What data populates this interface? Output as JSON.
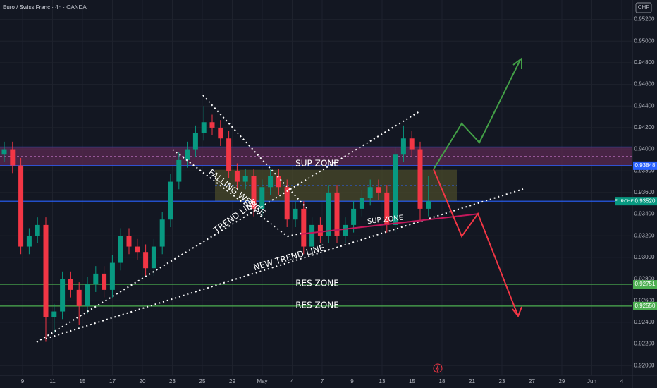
{
  "header": {
    "symbol": "Euro / Swiss Franc · 4h · OANDA",
    "currency": "CHF"
  },
  "chart_data": {
    "type": "candlestick",
    "up_color": "#089981",
    "down_color": "#f23645",
    "open": [
      0.9395,
      0.94,
      0.9385,
      0.931,
      0.932,
      0.933,
      0.9245,
      0.925,
      0.928,
      0.927,
      0.9255,
      0.9275,
      0.9285,
      0.927,
      0.9295,
      0.932,
      0.931,
      0.9305,
      0.929,
      0.931,
      0.9335,
      0.937,
      0.939,
      0.94,
      0.9415,
      0.9425,
      0.942,
      0.941,
      0.938,
      0.937,
      0.9375,
      0.9345,
      0.9365,
      0.9375,
      0.9365,
      0.9335,
      0.9345,
      0.931,
      0.933,
      0.932,
      0.936,
      0.932,
      0.933,
      0.9345,
      0.9355,
      0.9365,
      0.936,
      0.933,
      0.9395,
      0.941,
      0.94,
      0.9345
    ],
    "high": [
      0.9407,
      0.9407,
      0.9392,
      0.9327,
      0.9337,
      0.9337,
      0.9257,
      0.9287,
      0.9287,
      0.9277,
      0.9282,
      0.9292,
      0.9292,
      0.9302,
      0.9327,
      0.9327,
      0.9317,
      0.9312,
      0.9317,
      0.9342,
      0.9377,
      0.9397,
      0.9407,
      0.9422,
      0.944,
      0.9432,
      0.9427,
      0.9417,
      0.9387,
      0.9382,
      0.9382,
      0.9372,
      0.9382,
      0.9382,
      0.9372,
      0.9352,
      0.9352,
      0.9337,
      0.9337,
      0.9367,
      0.9367,
      0.9337,
      0.9352,
      0.9362,
      0.9372,
      0.9372,
      0.9367,
      0.9402,
      0.9422,
      0.9417,
      0.9407,
      0.9375
    ],
    "low": [
      0.9388,
      0.9378,
      0.9303,
      0.9303,
      0.9313,
      0.9222,
      0.923,
      0.9243,
      0.9263,
      0.9238,
      0.9248,
      0.9268,
      0.9263,
      0.9263,
      0.9288,
      0.9303,
      0.9298,
      0.9283,
      0.9283,
      0.9303,
      0.9328,
      0.9363,
      0.9383,
      0.9393,
      0.9408,
      0.9413,
      0.9403,
      0.9373,
      0.9363,
      0.9363,
      0.9338,
      0.9338,
      0.9358,
      0.9358,
      0.9328,
      0.9328,
      0.9303,
      0.9303,
      0.9313,
      0.9313,
      0.9313,
      0.9313,
      0.9323,
      0.9338,
      0.9348,
      0.9353,
      0.9323,
      0.9323,
      0.9388,
      0.9393,
      0.9333,
      0.9338
    ],
    "close": [
      0.94,
      0.9385,
      0.931,
      0.932,
      0.933,
      0.9245,
      0.925,
      0.928,
      0.927,
      0.9255,
      0.9275,
      0.9285,
      0.927,
      0.9295,
      0.932,
      0.931,
      0.9305,
      0.929,
      0.931,
      0.9335,
      0.937,
      0.939,
      0.94,
      0.9415,
      0.9425,
      0.942,
      0.941,
      0.938,
      0.937,
      0.9375,
      0.9345,
      0.9365,
      0.9375,
      0.9365,
      0.9335,
      0.9345,
      0.931,
      0.933,
      0.932,
      0.936,
      0.932,
      0.933,
      0.9345,
      0.9355,
      0.9365,
      0.936,
      0.933,
      0.9395,
      0.941,
      0.94,
      0.9345,
      0.9352
    ],
    "ylim": [
      0.9191,
      0.9538
    ],
    "yticks": [
      {
        "value": 0.92,
        "label": "0.92000"
      },
      {
        "value": 0.922,
        "label": "0.92200"
      },
      {
        "value": 0.924,
        "label": "0.92400"
      },
      {
        "value": 0.926,
        "label": "0.92600"
      },
      {
        "value": 0.928,
        "label": "0.92800"
      },
      {
        "value": 0.93,
        "label": "0.93000"
      },
      {
        "value": 0.932,
        "label": "0.93200"
      },
      {
        "value": 0.934,
        "label": "0.93400"
      },
      {
        "value": 0.936,
        "label": "0.93600"
      },
      {
        "value": 0.938,
        "label": "0.93800"
      },
      {
        "value": 0.94,
        "label": "0.94000"
      },
      {
        "value": 0.942,
        "label": "0.94200"
      },
      {
        "value": 0.944,
        "label": "0.94400"
      },
      {
        "value": 0.946,
        "label": "0.94600"
      },
      {
        "value": 0.948,
        "label": "0.94800"
      },
      {
        "value": 0.95,
        "label": "0.95000"
      },
      {
        "value": 0.952,
        "label": "0.95200"
      }
    ],
    "grid": true,
    "x_labels": [
      "9",
      "11",
      "15",
      "17",
      "20",
      "23",
      "25",
      "29",
      "May",
      "4",
      "7",
      "9",
      "13",
      "15",
      "18",
      "21",
      "23",
      "27",
      "29",
      "Jun",
      "4"
    ],
    "zones": [
      {
        "from": 0.93848,
        "to": 0.9402,
        "color": "#5b2a52"
      },
      {
        "from": 0.9352,
        "to": 0.9381,
        "color": "#4a4a2a"
      }
    ],
    "levels": [
      {
        "value": 0.9402,
        "color": "#2962ff"
      },
      {
        "value": 0.93848,
        "color": "#2962ff",
        "label": "0.93848"
      },
      {
        "value": 0.9352,
        "color": "#2962ff",
        "name": "EURCHF",
        "label": "0.93520",
        "tag_color": "#089981"
      },
      {
        "value": 0.92751,
        "color": "#4caf50",
        "label": "0.92751"
      },
      {
        "value": 0.9255,
        "color": "#4caf50",
        "label": "0.92550"
      }
    ],
    "annotations": {
      "sup_zone": "SUP ZONE",
      "falling_wedge": "FALLING WEDGE",
      "trend_line": "TREND LINE",
      "sup_zone_small": "SUP ZONE",
      "new_trend_line": "NEW TREND LINE",
      "res_zone_1": "RES ZONE",
      "res_zone_2": "RES ZONE"
    }
  }
}
